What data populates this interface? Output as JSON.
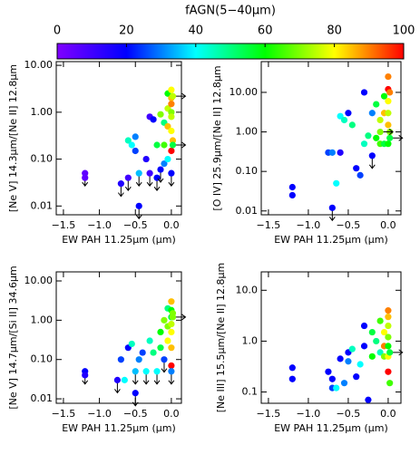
{
  "colorbar": {
    "title": "fAGN(5−40μm)",
    "lim": [
      0,
      100
    ],
    "ticks": [
      0,
      20,
      40,
      60,
      80,
      100
    ],
    "colors": [
      "#8000ff",
      "#0000ff",
      "#00ffff",
      "#00ff00",
      "#ffff00",
      "#ff0000"
    ]
  },
  "chart_data": [
    {
      "type": "scatter",
      "xlabel": "EW PAH 11.25μm (μm)",
      "ylabel": "[Ne V] 14.3μm/[Ne II] 12.8μm",
      "log_y": true,
      "xlim": [
        -1.6,
        0.14
      ],
      "ylim": [
        0.0065,
        12
      ],
      "xticks": [
        {
          "value": -1.5,
          "label": "−1.5"
        },
        {
          "value": -1.0,
          "label": "−1.0"
        },
        {
          "value": -0.5,
          "label": "−0.5"
        },
        {
          "value": 0.0,
          "label": "0.0"
        }
      ],
      "yticks": [
        0.01,
        {
          "value": 0.1,
          "label": "0.10"
        },
        {
          "value": 1,
          "label": "1.00"
        },
        {
          "value": 10,
          "label": "10.00"
        }
      ],
      "x": [
        -1.2,
        -1.2,
        -0.7,
        -0.6,
        -0.6,
        -0.55,
        -0.5,
        -0.5,
        -0.45,
        -0.45,
        -0.35,
        -0.3,
        -0.3,
        -0.25,
        -0.2,
        -0.2,
        -0.15,
        -0.15,
        -0.1,
        -0.1,
        -0.1,
        -0.05,
        -0.05,
        -0.05,
        -0.05,
        0,
        0,
        0,
        0,
        0,
        0,
        0,
        0.02,
        0,
        0.02,
        0.02
      ],
      "y": [
        0.05,
        0.04,
        0.03,
        0.25,
        0.04,
        0.2,
        0.3,
        0.15,
        0.01,
        0.05,
        0.1,
        0.8,
        0.05,
        0.7,
        0.2,
        0.04,
        0.9,
        0.06,
        0.6,
        0.2,
        0.08,
        2.5,
        1.2,
        0.5,
        0.1,
        3,
        2,
        1.5,
        1,
        0.8,
        0.4,
        0.15,
        0.25,
        0.05,
        2.2,
        0.2
      ],
      "f_agn": [
        5,
        5,
        15,
        45,
        10,
        40,
        30,
        25,
        20,
        35,
        15,
        10,
        10,
        20,
        55,
        20,
        70,
        20,
        50,
        65,
        30,
        60,
        75,
        85,
        40,
        80,
        85,
        90,
        70,
        75,
        80,
        100,
        85,
        20,
        75,
        55
      ],
      "limit": [
        "down",
        null,
        "down",
        null,
        "down",
        null,
        null,
        null,
        "down",
        "down",
        null,
        null,
        "down",
        null,
        null,
        "down",
        null,
        "down",
        null,
        null,
        null,
        null,
        null,
        null,
        null,
        null,
        null,
        null,
        null,
        null,
        null,
        null,
        null,
        "down",
        "right",
        "right"
      ]
    },
    {
      "type": "scatter",
      "xlabel": "EW PAH 11.25μm (μm)",
      "ylabel": "[O IV] 25.9μm/[Ne II] 12.8μm",
      "log_y": true,
      "xlim": [
        -1.59,
        0.16
      ],
      "ylim": [
        0.008,
        60
      ],
      "xticks": [
        {
          "value": -1.5,
          "label": "−1.5"
        },
        {
          "value": -1.0,
          "label": "−1.0"
        },
        {
          "value": -0.5,
          "label": "−0.5"
        },
        {
          "value": 0.0,
          "label": "0.0"
        }
      ],
      "yticks": [
        0.01,
        {
          "value": 0.1,
          "label": "0.10"
        },
        {
          "value": 1,
          "label": "1.00"
        },
        {
          "value": 10,
          "label": "10.00"
        }
      ],
      "x": [
        -1.2,
        -1.2,
        -0.75,
        -0.7,
        -0.7,
        -0.65,
        -0.6,
        -0.6,
        -0.55,
        -0.5,
        -0.45,
        -0.4,
        -0.35,
        -0.3,
        -0.3,
        -0.25,
        -0.2,
        -0.2,
        -0.15,
        -0.15,
        -0.1,
        -0.1,
        -0.05,
        -0.05,
        -0.05,
        0,
        0,
        0,
        0,
        0,
        0,
        0.02,
        0.02,
        -0.1,
        0.02
      ],
      "y": [
        0.04,
        0.025,
        0.3,
        0.012,
        0.3,
        0.05,
        0.3,
        2.5,
        2,
        3,
        1.5,
        0.12,
        0.08,
        10,
        0.5,
        0.8,
        0.25,
        3,
        0.7,
        5,
        0.5,
        2,
        8,
        3,
        0.5,
        25,
        12,
        6,
        3,
        1.5,
        0.5,
        1,
        10,
        1,
        0.7
      ],
      "f_agn": [
        20,
        20,
        25,
        20,
        30,
        40,
        15,
        40,
        45,
        20,
        50,
        20,
        25,
        20,
        45,
        50,
        20,
        30,
        60,
        55,
        65,
        75,
        60,
        85,
        55,
        90,
        100,
        80,
        75,
        85,
        60,
        70,
        90,
        70,
        55
      ],
      "limit": [
        null,
        null,
        null,
        "down",
        null,
        null,
        null,
        null,
        null,
        null,
        null,
        null,
        null,
        null,
        null,
        null,
        "down",
        null,
        null,
        null,
        null,
        null,
        null,
        null,
        null,
        null,
        null,
        null,
        null,
        null,
        null,
        null,
        null,
        "right",
        "right"
      ]
    },
    {
      "type": "scatter",
      "xlabel": "EW PAH 11.25μm (μm)",
      "ylabel": "[Ne V] 14.7μm/[Si II] 34.6μm",
      "log_y": true,
      "xlim": [
        -1.6,
        0.14
      ],
      "ylim": [
        0.0077,
        17
      ],
      "xticks": [
        {
          "value": -1.5,
          "label": "−1.5"
        },
        {
          "value": -1.0,
          "label": "−1.0"
        },
        {
          "value": -0.5,
          "label": "−0.5"
        },
        {
          "value": 0.0,
          "label": "0.0"
        }
      ],
      "yticks": [
        0.01,
        {
          "value": 0.1,
          "label": "0.10"
        },
        {
          "value": 1,
          "label": "1.00"
        },
        {
          "value": 10,
          "label": "10.00"
        }
      ],
      "x": [
        -1.2,
        -1.2,
        -0.75,
        -0.7,
        -0.65,
        -0.6,
        -0.55,
        -0.5,
        -0.5,
        -0.45,
        -0.4,
        -0.35,
        -0.3,
        -0.25,
        -0.2,
        -0.15,
        -0.15,
        -0.1,
        -0.1,
        -0.05,
        -0.05,
        -0.05,
        0,
        0,
        0,
        0,
        0,
        0,
        0,
        0.02,
        0,
        0.02
      ],
      "y": [
        0.05,
        0.04,
        0.03,
        0.1,
        0.03,
        0.2,
        0.25,
        0.05,
        0.014,
        0.1,
        0.15,
        0.05,
        0.3,
        0.15,
        0.05,
        0.2,
        0.5,
        1,
        0.1,
        2,
        0.7,
        0.3,
        3,
        1.8,
        1.2,
        0.8,
        0.5,
        0.2,
        0.07,
        1.5,
        0.05,
        1.2
      ],
      "f_agn": [
        20,
        15,
        15,
        25,
        40,
        20,
        45,
        35,
        20,
        30,
        25,
        40,
        45,
        50,
        40,
        55,
        60,
        70,
        25,
        50,
        70,
        80,
        85,
        60,
        55,
        75,
        80,
        85,
        100,
        70,
        30,
        70
      ],
      "limit": [
        "down",
        null,
        "down",
        null,
        null,
        null,
        null,
        "down",
        "down",
        null,
        null,
        "down",
        null,
        null,
        "down",
        null,
        null,
        null,
        "down",
        null,
        null,
        null,
        null,
        null,
        null,
        null,
        null,
        null,
        null,
        null,
        "down",
        "right"
      ]
    },
    {
      "type": "scatter",
      "xlabel": "EW PAH 11.25μm (μm)",
      "ylabel": "[Ne III] 15.5μm/[Ne II] 12.8μm",
      "log_y": true,
      "xlim": [
        -1.59,
        0.16
      ],
      "ylim": [
        0.06,
        23
      ],
      "xticks": [
        {
          "value": -1.5,
          "label": "−1.5"
        },
        {
          "value": -1.0,
          "label": "−1.0"
        },
        {
          "value": -0.5,
          "label": "−0.5"
        },
        {
          "value": 0.0,
          "label": "0.0"
        }
      ],
      "yticks": [
        0.1,
        {
          "value": 1,
          "label": "1.0"
        },
        {
          "value": 10,
          "label": "10.0"
        }
      ],
      "x": [
        -1.2,
        -1.2,
        -0.75,
        -0.7,
        -0.7,
        -0.65,
        -0.6,
        -0.55,
        -0.5,
        -0.5,
        -0.45,
        -0.4,
        -0.35,
        -0.3,
        -0.3,
        -0.25,
        -0.2,
        -0.2,
        -0.15,
        -0.1,
        -0.1,
        -0.05,
        -0.05,
        -0.05,
        0,
        0,
        0,
        0,
        0,
        0,
        0,
        0.02,
        0.02
      ],
      "y": [
        0.3,
        0.18,
        0.25,
        0.12,
        0.18,
        0.12,
        0.45,
        0.15,
        0.4,
        0.6,
        0.7,
        0.2,
        0.35,
        0.8,
        2,
        0.07,
        0.5,
        1.5,
        1,
        0.6,
        2.5,
        1.5,
        0.8,
        0.5,
        4,
        3,
        2,
        1.2,
        0.8,
        0.5,
        0.25,
        0.15,
        0.6
      ],
      "f_agn": [
        20,
        20,
        20,
        25,
        20,
        40,
        20,
        30,
        30,
        20,
        45,
        20,
        40,
        20,
        20,
        20,
        60,
        55,
        50,
        45,
        65,
        80,
        90,
        70,
        90,
        85,
        75,
        70,
        60,
        80,
        100,
        65,
        55
      ],
      "limit": [
        null,
        null,
        null,
        null,
        null,
        null,
        null,
        null,
        null,
        null,
        null,
        null,
        null,
        null,
        null,
        null,
        null,
        null,
        null,
        null,
        null,
        null,
        null,
        null,
        null,
        null,
        null,
        null,
        null,
        null,
        null,
        null,
        "right"
      ]
    }
  ]
}
